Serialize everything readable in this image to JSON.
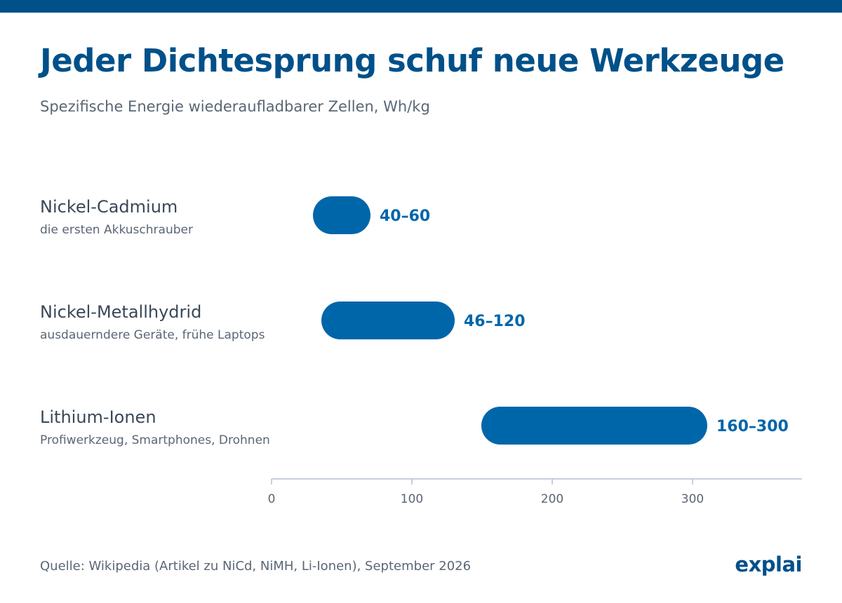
{
  "colors": {
    "accent": "#005089",
    "bar": "#0066aa",
    "text_dark": "#394858",
    "text_muted": "#5a6675",
    "axis": "#b5c1ce"
  },
  "header": {
    "title": "Jeder Dichtesprung schuf neue Werkzeuge",
    "subtitle": "Spezifische Energie wiederaufladbarer Zellen, Wh/kg"
  },
  "footer": {
    "source": "Quelle: Wikipedia (Artikel zu NiCd, NiMH, Li-Ionen), September 2026",
    "logo": "explai"
  },
  "chart_data": {
    "type": "bar",
    "orientation": "horizontal-range",
    "title": "Jeder Dichtesprung schuf neue Werkzeuge",
    "subtitle": "Spezifische Energie wiederaufladbarer Zellen, Wh/kg",
    "xlim": [
      0,
      380
    ],
    "xticks": [
      0,
      100,
      200,
      300
    ],
    "grid": false,
    "categories": [
      {
        "name": "Nickel-Cadmium",
        "note": "die ersten Akkuschrauber",
        "low": 40,
        "high": 60,
        "label": "40–60"
      },
      {
        "name": "Nickel-Metallhydrid",
        "note": "ausdauerndere Geräte, frühe Laptops",
        "low": 46,
        "high": 120,
        "label": "46–120"
      },
      {
        "name": "Lithium-Ionen",
        "note": "Profiwerkzeug, Smartphones, Drohnen",
        "low": 160,
        "high": 300,
        "label": "160–300"
      }
    ]
  }
}
